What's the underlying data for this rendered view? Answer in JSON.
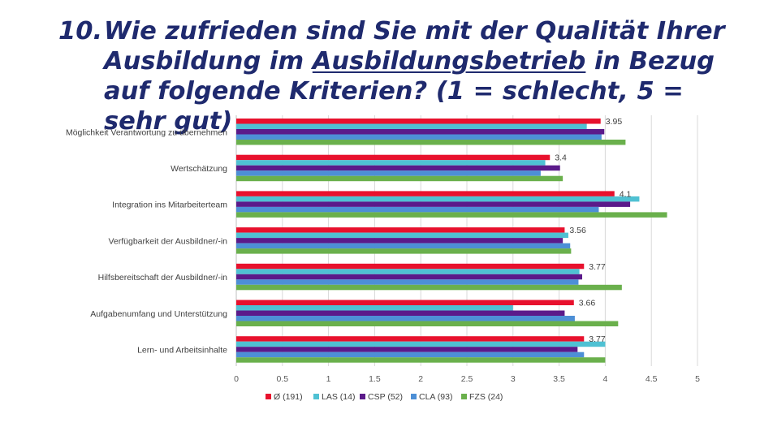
{
  "title": {
    "number": "10.",
    "part1": "Wie zufrieden sind Sie mit der Qualität Ihrer Ausbildung im ",
    "underlined": "Ausbildungsbetrieb",
    "part2": " in Bezug auf folgende Kriterien? (1 = schlecht, 5 = sehr gut)"
  },
  "chart_data": {
    "type": "bar",
    "orientation": "horizontal",
    "categories": [
      "Möglichkeit Verantwortung zu übernehmen",
      "Wertschätzung",
      "Integration ins Mitarbeiterteam",
      "Verfügbarkeit der Ausbildner/-in",
      "Hilfsbereitschaft der Ausbildner/-in",
      "Aufgabenumfang und Unterstützung",
      "Lern- und Arbeitsinhalte"
    ],
    "series": [
      {
        "name": "Ø (191)",
        "color": "#e8112d",
        "values": [
          3.95,
          3.4,
          4.1,
          3.56,
          3.77,
          3.66,
          3.77
        ]
      },
      {
        "name": "LAS (14)",
        "color": "#4fc1d3",
        "values": [
          3.8,
          3.35,
          4.37,
          3.6,
          3.72,
          3.0,
          4.0
        ]
      },
      {
        "name": "CSP (52)",
        "color": "#5b1a8a",
        "values": [
          3.99,
          3.51,
          4.27,
          3.54,
          3.75,
          3.56,
          3.7
        ]
      },
      {
        "name": "CLA (93)",
        "color": "#4d8fd6",
        "values": [
          3.96,
          3.3,
          3.93,
          3.62,
          3.71,
          3.67,
          3.77
        ]
      },
      {
        "name": "FZS (24)",
        "color": "#6ab04c",
        "values": [
          4.22,
          3.54,
          4.67,
          3.63,
          4.18,
          4.14,
          4.0
        ]
      }
    ],
    "data_labels": [
      "3.95",
      "3.4",
      "4.1",
      "3.56",
      "3.77",
      "3.66",
      "3.77"
    ],
    "x_ticks": [
      "0",
      "0.5",
      "1",
      "1.5",
      "2",
      "2.5",
      "3",
      "3.5",
      "4",
      "4.5",
      "5"
    ],
    "xlim": [
      0,
      5
    ],
    "grid": "vertical",
    "legend_position": "bottom"
  }
}
